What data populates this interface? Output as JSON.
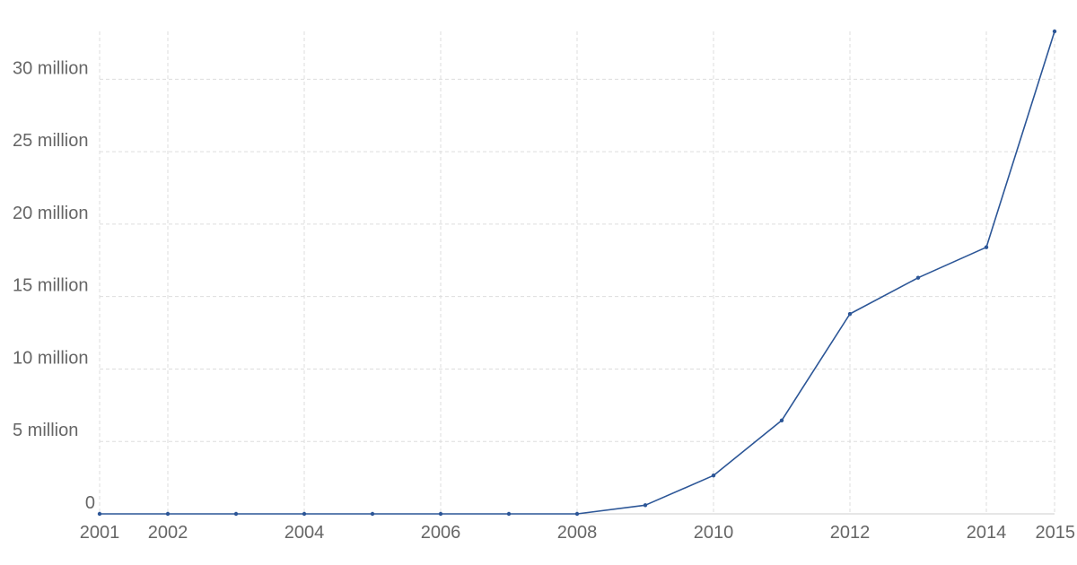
{
  "chart_data": {
    "type": "line",
    "title": "",
    "xlabel": "",
    "ylabel": "",
    "x": [
      2001,
      2002,
      2003,
      2004,
      2005,
      2006,
      2007,
      2008,
      2009,
      2010,
      2011,
      2012,
      2013,
      2014,
      2015
    ],
    "series": [
      {
        "values": [
          0,
          0,
          0,
          0,
          0,
          0,
          0,
          0,
          600000,
          2650000,
          6450000,
          13800000,
          16300000,
          18400000,
          33300000
        ],
        "color": "#2c5697"
      }
    ],
    "xlim": [
      2001,
      2015
    ],
    "ylim": [
      0,
      33300000
    ],
    "x_ticks": [
      2001,
      2002,
      2004,
      2006,
      2008,
      2010,
      2012,
      2014,
      2015
    ],
    "x_tick_labels": [
      "2001",
      "2002",
      "2004",
      "2006",
      "2008",
      "2010",
      "2012",
      "2014",
      "2015"
    ],
    "y_ticks": [
      0,
      5000000,
      10000000,
      15000000,
      20000000,
      25000000,
      30000000
    ],
    "y_tick_labels": [
      "0",
      "5 million",
      "10 million",
      "15 million",
      "20 million",
      "25 million",
      "30 million"
    ],
    "grid": true,
    "legend": "none"
  }
}
